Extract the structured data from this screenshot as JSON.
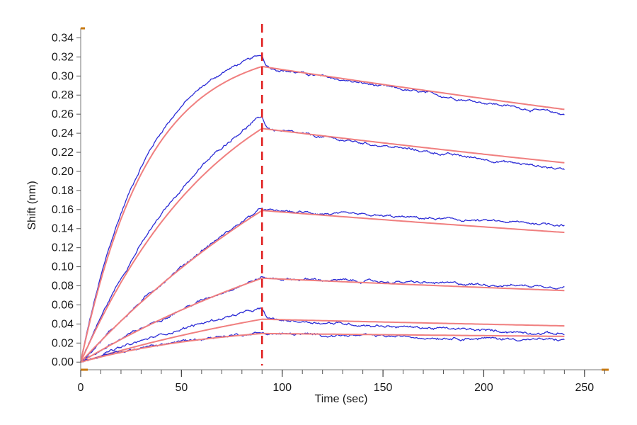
{
  "chart_data": {
    "type": "line",
    "title": "",
    "xlabel": "Time (sec)",
    "ylabel": "Shift (nm)",
    "xlim": [
      0,
      262
    ],
    "ylim": [
      -0.008,
      0.35
    ],
    "x_ticks": [
      0,
      50,
      100,
      150,
      200,
      250
    ],
    "x_minor_step": 10,
    "y_ticks": [
      0.0,
      0.02,
      0.04,
      0.06,
      0.08,
      0.1,
      0.12,
      0.14,
      0.16,
      0.18,
      0.2,
      0.22,
      0.24,
      0.26,
      0.28,
      0.3,
      0.32,
      0.34
    ],
    "grid": false,
    "legend": "none",
    "dissociation_start": 90,
    "x_end": 240,
    "colors": {
      "data": "#2b2bd6",
      "fit": "#f07f7f",
      "marker": "#e02020",
      "axis": "#c87a10",
      "text": "#1a1a1a"
    },
    "curves": [
      {
        "peak": 0.31,
        "k_on": 0.03,
        "end": 0.265,
        "data_peak": 0.322,
        "data_end": 0.27
      },
      {
        "peak": 0.245,
        "k_on": 0.014,
        "end": 0.209,
        "data_peak": 0.258,
        "data_end": 0.213
      },
      {
        "peak": 0.159,
        "k_on": 0.006,
        "end": 0.136,
        "data_peak": 0.161,
        "data_end": 0.146
      },
      {
        "peak": 0.088,
        "k_on": 0.006,
        "end": 0.075,
        "data_peak": 0.089,
        "data_end": 0.08
      },
      {
        "peak": 0.045,
        "k_on": 0.006,
        "end": 0.038,
        "data_peak": 0.056,
        "data_end": 0.037
      },
      {
        "peak": 0.03,
        "k_on": 0.014,
        "end": 0.027,
        "data_peak": 0.031,
        "data_end": 0.024
      }
    ]
  }
}
